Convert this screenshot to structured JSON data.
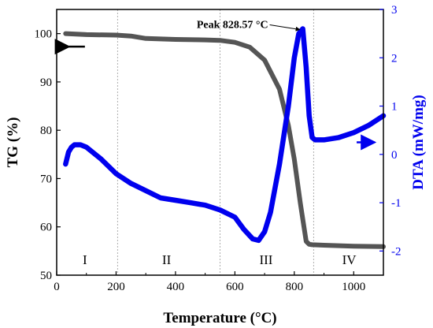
{
  "chart_data": {
    "type": "line",
    "xlabel": "Temperature (°C)",
    "ylabel_left": "TG (%)",
    "ylabel_right": "DTA (mW/mg)",
    "xlim": [
      0,
      1100
    ],
    "ylim_left": [
      50,
      105
    ],
    "ylim_right": [
      -2.5,
      3
    ],
    "x_ticks": [
      0,
      200,
      400,
      600,
      800,
      1000
    ],
    "y_left_ticks": [
      50,
      60,
      70,
      80,
      90,
      100
    ],
    "y_right_ticks": [
      -2,
      -1,
      0,
      1,
      2,
      3
    ],
    "grid": false,
    "region_dividers_x": [
      205,
      550,
      865
    ],
    "regions": [
      {
        "label": "I",
        "x": 95
      },
      {
        "label": "II",
        "x": 370
      },
      {
        "label": "III",
        "x": 705
      },
      {
        "label": "IV",
        "x": 985
      }
    ],
    "annotation": {
      "text": "Peak 828.57 °C",
      "x": 828.57,
      "y_dta": 2.6
    },
    "series": [
      {
        "key": "tg",
        "axis": "left",
        "color": "#555555",
        "x": [
          30,
          100,
          200,
          250,
          300,
          400,
          500,
          550,
          600,
          650,
          700,
          750,
          780,
          800,
          820,
          840,
          850,
          860,
          900,
          1000,
          1100
        ],
        "y": [
          100.0,
          99.8,
          99.7,
          99.5,
          99.0,
          98.8,
          98.7,
          98.6,
          98.2,
          97.2,
          94.5,
          88.5,
          81.0,
          74.0,
          65.0,
          57.0,
          56.4,
          56.3,
          56.2,
          56.0,
          55.9
        ]
      },
      {
        "key": "dta",
        "axis": "right",
        "color": "#0000ee",
        "x": [
          30,
          40,
          50,
          60,
          80,
          100,
          150,
          200,
          250,
          300,
          350,
          400,
          450,
          500,
          550,
          600,
          630,
          660,
          680,
          700,
          720,
          750,
          780,
          800,
          815,
          828.57,
          840,
          850,
          860,
          870,
          900,
          950,
          1000,
          1050,
          1100
        ],
        "y": [
          -0.2,
          0.05,
          0.15,
          0.2,
          0.2,
          0.15,
          -0.1,
          -0.4,
          -0.6,
          -0.75,
          -0.9,
          -0.95,
          -1.0,
          -1.05,
          -1.15,
          -1.3,
          -1.55,
          -1.75,
          -1.78,
          -1.6,
          -1.2,
          -0.2,
          1.0,
          2.0,
          2.5,
          2.6,
          1.8,
          0.8,
          0.35,
          0.3,
          0.3,
          0.35,
          0.45,
          0.6,
          0.8
        ]
      }
    ]
  }
}
